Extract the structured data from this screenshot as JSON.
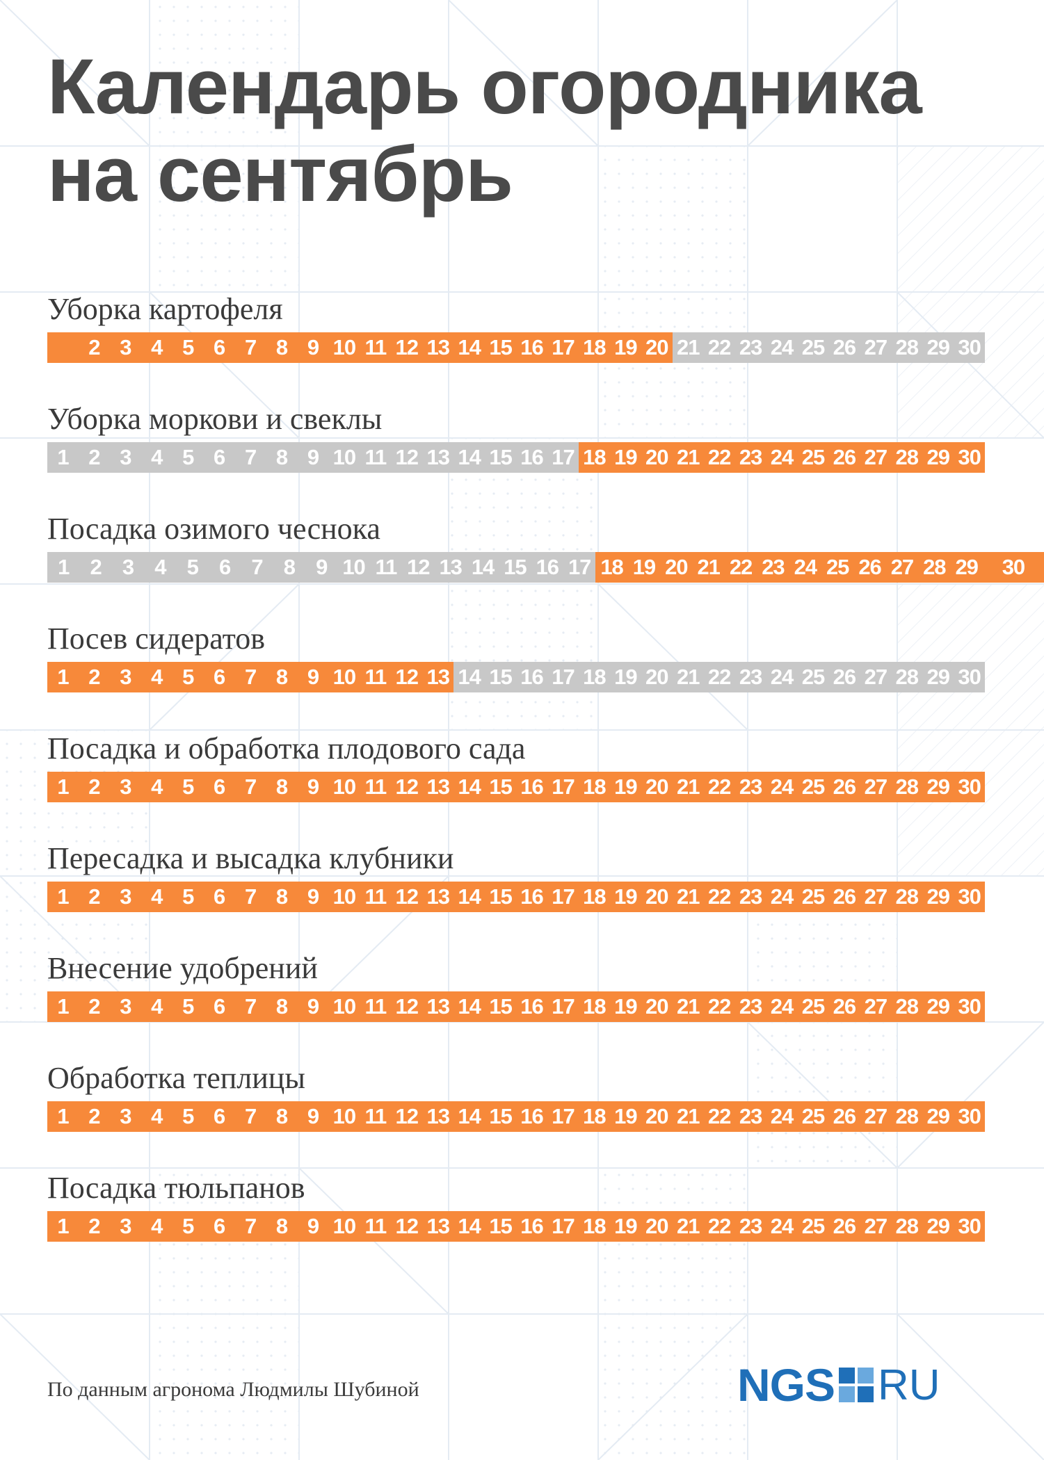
{
  "title": {
    "line1": "Календарь огородника",
    "line2": "на сентябрь"
  },
  "colors": {
    "active": "#f7893a",
    "inactive": "#c8c8c8",
    "title": "#4a4a4a",
    "brand": "#1f6fb8"
  },
  "rows": [
    {
      "label": "Уборка картофеля",
      "days": [
        "",
        "2",
        "3",
        "4",
        "5",
        "6",
        "7",
        "8",
        "9",
        "10",
        "11",
        "12",
        "13",
        "14",
        "15",
        "16",
        "17",
        "18",
        "19",
        "20",
        "21",
        "22",
        "23",
        "24",
        "25",
        "26",
        "27",
        "28",
        "29",
        "30"
      ],
      "active_from": 1,
      "active_to": 20,
      "extended": false
    },
    {
      "label": "Уборка моркови и свеклы",
      "days": [
        "1",
        "2",
        "3",
        "4",
        "5",
        "6",
        "7",
        "8",
        "9",
        "10",
        "11",
        "12",
        "13",
        "14",
        "15",
        "16",
        "17",
        "18",
        "19",
        "20",
        "21",
        "22",
        "23",
        "24",
        "25",
        "26",
        "27",
        "28",
        "29",
        "30"
      ],
      "active_from": 18,
      "active_to": 30,
      "extended": false
    },
    {
      "label": "Посадка озимого чеснока",
      "days": [
        "1",
        "2",
        "3",
        "4",
        "5",
        "6",
        "7",
        "8",
        "9",
        "10",
        "11",
        "12",
        "13",
        "14",
        "15",
        "16",
        "17",
        "18",
        "19",
        "20",
        "21",
        "22",
        "23",
        "24",
        "25",
        "26",
        "27",
        "28",
        "29",
        "30"
      ],
      "active_from": 18,
      "active_to": 30,
      "extended": true
    },
    {
      "label": "Посев сидератов",
      "days": [
        "1",
        "2",
        "3",
        "4",
        "5",
        "6",
        "7",
        "8",
        "9",
        "10",
        "11",
        "12",
        "13",
        "14",
        "15",
        "16",
        "17",
        "18",
        "19",
        "20",
        "21",
        "22",
        "23",
        "24",
        "25",
        "26",
        "27",
        "28",
        "29",
        "30"
      ],
      "active_from": 1,
      "active_to": 13,
      "extended": false
    },
    {
      "label": "Посадка и обработка плодового сада",
      "days": [
        "1",
        "2",
        "3",
        "4",
        "5",
        "6",
        "7",
        "8",
        "9",
        "10",
        "11",
        "12",
        "13",
        "14",
        "15",
        "16",
        "17",
        "18",
        "19",
        "20",
        "21",
        "22",
        "23",
        "24",
        "25",
        "26",
        "27",
        "28",
        "29",
        "30"
      ],
      "active_from": 1,
      "active_to": 30,
      "extended": false
    },
    {
      "label": "Пересадка и высадка клубники",
      "days": [
        "1",
        "2",
        "3",
        "4",
        "5",
        "6",
        "7",
        "8",
        "9",
        "10",
        "11",
        "12",
        "13",
        "14",
        "15",
        "16",
        "17",
        "18",
        "19",
        "20",
        "21",
        "22",
        "23",
        "24",
        "25",
        "26",
        "27",
        "28",
        "29",
        "30"
      ],
      "active_from": 1,
      "active_to": 30,
      "extended": false
    },
    {
      "label": "Внесение удобрений",
      "days": [
        "1",
        "2",
        "3",
        "4",
        "5",
        "6",
        "7",
        "8",
        "9",
        "10",
        "11",
        "12",
        "13",
        "14",
        "15",
        "16",
        "17",
        "18",
        "19",
        "20",
        "21",
        "22",
        "23",
        "24",
        "25",
        "26",
        "27",
        "28",
        "29",
        "30"
      ],
      "active_from": 1,
      "active_to": 30,
      "extended": false
    },
    {
      "label": "Обработка теплицы",
      "days": [
        "1",
        "2",
        "3",
        "4",
        "5",
        "6",
        "7",
        "8",
        "9",
        "10",
        "11",
        "12",
        "13",
        "14",
        "15",
        "16",
        "17",
        "18",
        "19",
        "20",
        "21",
        "22",
        "23",
        "24",
        "25",
        "26",
        "27",
        "28",
        "29",
        "30"
      ],
      "active_from": 1,
      "active_to": 30,
      "extended": false
    },
    {
      "label": "Посадка тюльпанов",
      "days": [
        "1",
        "2",
        "3",
        "4",
        "5",
        "6",
        "7",
        "8",
        "9",
        "10",
        "11",
        "12",
        "13",
        "14",
        "15",
        "16",
        "17",
        "18",
        "19",
        "20",
        "21",
        "22",
        "23",
        "24",
        "25",
        "26",
        "27",
        "28",
        "29",
        "30"
      ],
      "active_from": 1,
      "active_to": 30,
      "extended": false
    }
  ],
  "footer": {
    "source": "По данным агронома Людмилы Шубиной",
    "logo_left": "NGS",
    "logo_right": "RU"
  }
}
